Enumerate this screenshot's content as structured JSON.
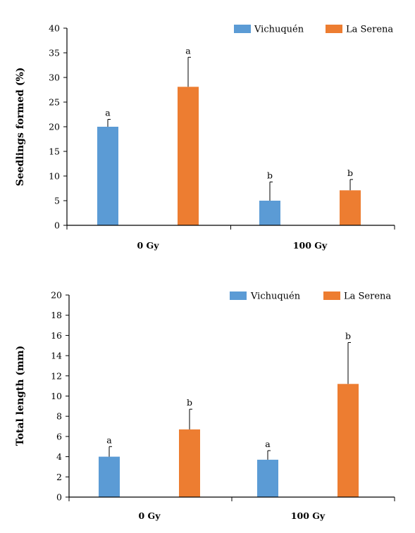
{
  "chart_data": [
    {
      "type": "bar",
      "categories": [
        "0 Gy",
        "100 Gy"
      ],
      "series": [
        {
          "name": "Vichuquén",
          "color": "#5B9BD5",
          "values": [
            20,
            5
          ],
          "errors": [
            1.5,
            3.8
          ],
          "labels": [
            "a",
            "b"
          ]
        },
        {
          "name": "La Serena",
          "color": "#ED7D31",
          "values": [
            28.1,
            7.1
          ],
          "errors": [
            6.0,
            2.2
          ],
          "labels": [
            "a",
            "b"
          ]
        }
      ],
      "xlabel": "",
      "ylabel": "Seedlings formed (%)",
      "ylim": [
        0,
        40
      ],
      "yticks": [
        0,
        5,
        10,
        15,
        20,
        25,
        30,
        35,
        40
      ],
      "grid": false,
      "legend_position": "top-right"
    },
    {
      "type": "bar",
      "categories": [
        "0 Gy",
        "100 Gy"
      ],
      "series": [
        {
          "name": "Vichuquén",
          "color": "#5B9BD5",
          "values": [
            4.0,
            3.7
          ],
          "errors": [
            1.0,
            0.9
          ],
          "labels": [
            "a",
            "a"
          ]
        },
        {
          "name": "La Serena",
          "color": "#ED7D31",
          "values": [
            6.7,
            11.2
          ],
          "errors": [
            2.0,
            4.1
          ],
          "labels": [
            "b",
            "b"
          ]
        }
      ],
      "xlabel": "",
      "ylabel": "Total length (mm)",
      "ylim": [
        0,
        20
      ],
      "yticks": [
        0,
        2,
        4,
        6,
        8,
        10,
        12,
        14,
        16,
        18,
        20
      ],
      "grid": false,
      "legend_position": "top-right"
    }
  ]
}
